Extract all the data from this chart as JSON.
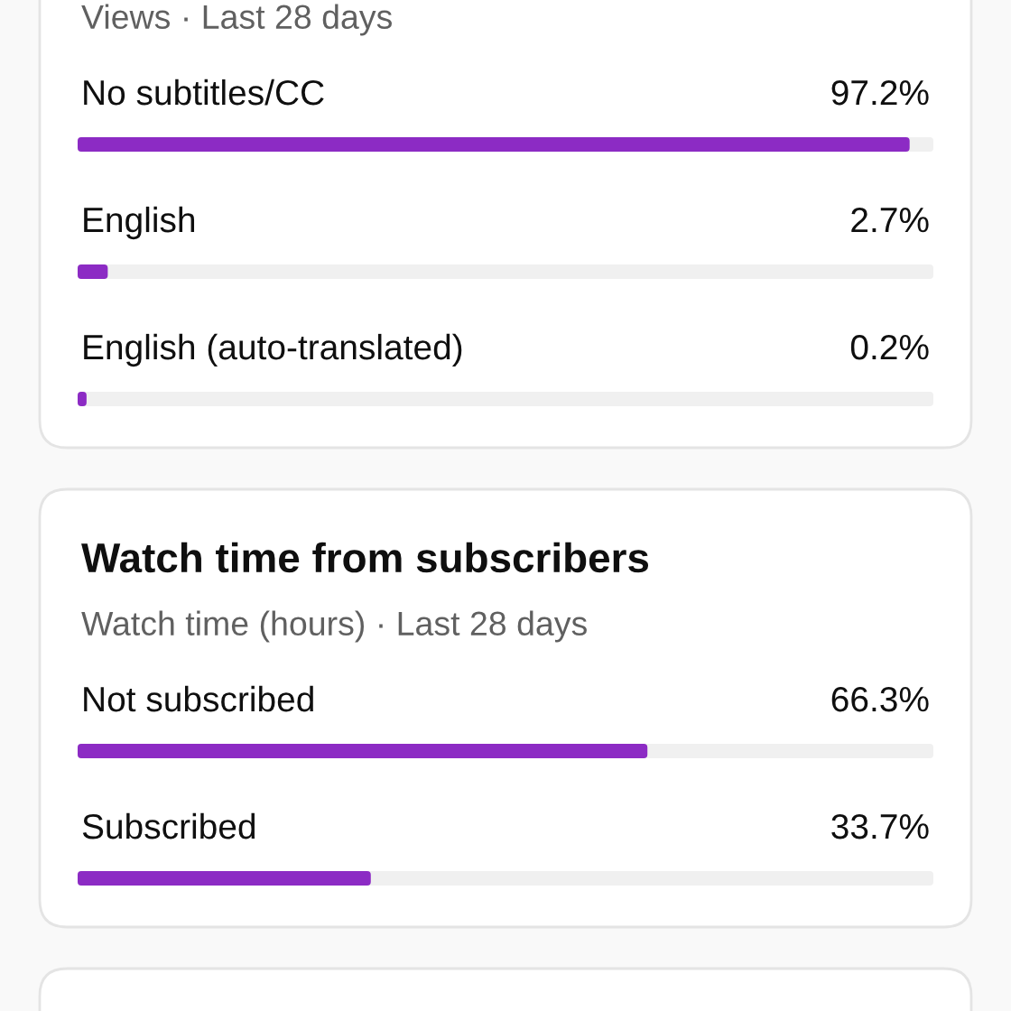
{
  "chart_data": [
    {
      "type": "bar",
      "orientation": "horizontal",
      "subtitle": "Views · Last 28 days",
      "categories": [
        "No subtitles/CC",
        "English",
        "English (auto-translated)"
      ],
      "series": [
        {
          "color": "#8c2bc4",
          "values": [
            97.2,
            2.7,
            0.2
          ],
          "value_labels": [
            "97.2%",
            "2.7%",
            "0.2%"
          ]
        }
      ],
      "xlim": [
        0,
        100
      ],
      "tick_labels": false
    },
    {
      "type": "bar",
      "orientation": "horizontal",
      "title": "Watch time from subscribers",
      "subtitle": "Watch time (hours) · Last 28 days",
      "categories": [
        "Not subscribed",
        "Subscribed"
      ],
      "series": [
        {
          "color": "#8c2bc4",
          "values": [
            66.3,
            33.7
          ],
          "value_labels": [
            "66.3%",
            "33.7%"
          ]
        }
      ],
      "xlim": [
        0,
        100
      ],
      "tick_labels": false
    }
  ]
}
